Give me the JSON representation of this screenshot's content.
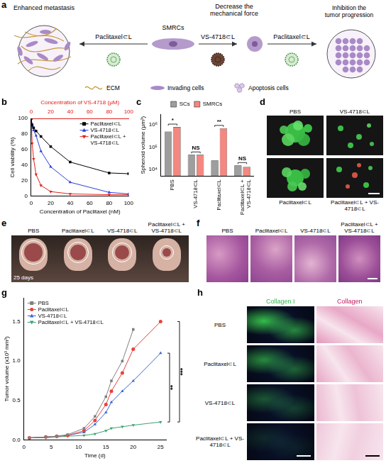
{
  "panels": {
    "a": {
      "letter": "a",
      "labels": {
        "left": "Enhanced metastasis",
        "center": "SMRCs",
        "middle": "Decrease the mechanical force",
        "right": "Inhibition the tumor progression"
      },
      "arrows": [
        "Paclitaxel⊂L",
        "VS-4718⊂L",
        "Paclitaxel⊂L"
      ],
      "key": [
        "ECM",
        "Invading cells",
        "Apoptosis cells"
      ]
    },
    "d": {
      "letter": "d",
      "images": [
        "PBS",
        "VS-4718⊂L",
        "Paclitaxel⊂L",
        "Paclitaxel⊂L + VS-4718⊂L"
      ]
    },
    "e": {
      "letter": "e",
      "images": [
        "PBS",
        "Paclitaxel⊂L",
        "VS-4718⊂L",
        "Paclitaxel⊂L + VS-4718⊂L"
      ],
      "caption": "25 days"
    },
    "f": {
      "letter": "f",
      "images": [
        "PBS",
        "Paclitaxel⊂L",
        "VS-4718⊂L",
        "Paclitaxel⊂L + VS-4718⊂L"
      ]
    },
    "h": {
      "letter": "h",
      "columns": [
        "Collagen I",
        "Collagen"
      ],
      "rows": [
        "PBS",
        "Paclitaxel⊂L",
        "VS-4718⊂L",
        "Paclitaxel⊂L + VS-4718⊂L"
      ]
    }
  },
  "chart_data": [
    {
      "panel": "b",
      "type": "line",
      "x_label": "Concentration of Paclitaxel (nM)",
      "x2_label": "Concentration of VS-4718 (μM)",
      "y_label": "Cell viability (%)",
      "xlim": [
        0,
        100
      ],
      "xticks": [
        0,
        20,
        40,
        60,
        80,
        100
      ],
      "x2lim": [
        0,
        100
      ],
      "x2ticks": [
        0,
        20,
        40,
        60,
        80,
        100
      ],
      "ylim": [
        0,
        100
      ],
      "yticks": [
        0,
        20,
        40,
        60,
        80,
        100
      ],
      "grid": false,
      "legend": "top-right",
      "series": [
        {
          "name": "Paclitaxel⊂L",
          "color": "#000000",
          "marker": "square",
          "x": [
            0,
            1,
            2.5,
            5,
            10,
            20,
            40,
            80,
            100
          ],
          "values": [
            100,
            92,
            88,
            84,
            77,
            64,
            44,
            30,
            29
          ]
        },
        {
          "name": "VS-4718⊂L",
          "color": "#2b3fd6",
          "marker": "triangle",
          "axis": "x2",
          "x": [
            0,
            1,
            2.5,
            5,
            10,
            20,
            40,
            80,
            100
          ],
          "values": [
            100,
            90,
            85,
            78,
            58,
            38,
            18,
            5,
            3
          ]
        },
        {
          "name": "Paclitaxel⊂L + VS-4718⊂L",
          "color": "#e0201b",
          "marker": "triangle-down",
          "x": [
            0,
            1,
            2.5,
            5,
            10,
            20,
            40,
            80,
            100
          ],
          "values": [
            100,
            68,
            48,
            28,
            14,
            6,
            3,
            2,
            2
          ]
        }
      ]
    },
    {
      "panel": "c",
      "type": "bar",
      "log": "y",
      "y_label": "Spheroid volume (μm³)",
      "categories": [
        "PBS",
        "VS-4718⊂L",
        "Paclitaxel⊂L",
        "Paclitaxel⊂L + VS-4718⊂L"
      ],
      "ylim": [
        5000,
        3000000
      ],
      "yticks": [
        {
          "value": 10000,
          "label": "10⁴"
        },
        {
          "value": 100000,
          "label": "10⁵"
        },
        {
          "value": 1000000,
          "label": "10⁶"
        }
      ],
      "grid": false,
      "legend": "top",
      "series": [
        {
          "name": "SCs",
          "color": "#9e9e9e",
          "values": [
            500000,
            45000,
            25000,
            15000
          ]
        },
        {
          "name": "SMRCs",
          "color": "#f4877f",
          "values": [
            800000,
            45000,
            700000,
            13000
          ]
        }
      ],
      "annotations": [
        "*",
        "NS",
        "**",
        "NS"
      ]
    },
    {
      "panel": "g",
      "type": "line",
      "x_label": "Time (d)",
      "y_label": "Tumor volume (x10³ mm³)",
      "xlim": [
        0,
        26
      ],
      "xticks": [
        0,
        5,
        10,
        15,
        20,
        25
      ],
      "ylim": [
        0,
        1.8
      ],
      "yticks": [
        {
          "value": 0,
          "label": "0.0"
        },
        {
          "value": 0.5,
          "label": "0.5"
        },
        {
          "value": 1,
          "label": "1.0"
        },
        {
          "value": 1.5,
          "label": "1.5"
        }
      ],
      "grid": false,
      "legend": "top-left",
      "x": [
        1,
        4,
        6,
        8,
        11,
        13,
        15,
        16,
        18,
        20,
        25
      ],
      "series": [
        {
          "name": "PBS",
          "color": "#7f7f7f",
          "marker": "square",
          "values": [
            0.03,
            0.04,
            0.05,
            0.07,
            0.15,
            0.3,
            0.55,
            0.75,
            1.0,
            1.4,
            null
          ]
        },
        {
          "name": "Paclitaxel⊂L",
          "color": "#e8413c",
          "marker": "circle",
          "values": [
            0.03,
            0.04,
            0.05,
            0.06,
            0.12,
            0.25,
            0.45,
            0.62,
            0.85,
            1.15,
            1.5
          ]
        },
        {
          "name": "VS-4718⊂L",
          "color": "#3a66d6",
          "marker": "triangle",
          "values": [
            0.03,
            0.04,
            0.05,
            0.06,
            0.1,
            0.2,
            0.35,
            0.48,
            0.62,
            0.75,
            1.1
          ]
        },
        {
          "name": "Paclitaxel⊂L + VS-4718⊂L",
          "color": "#3aa372",
          "marker": "triangle-down",
          "values": [
            0.03,
            0.03,
            0.04,
            0.05,
            0.06,
            0.08,
            0.12,
            0.15,
            0.17,
            0.19,
            0.23
          ]
        }
      ],
      "annotations": [
        {
          "from": "Paclitaxel⊂L + VS-4718⊂L",
          "to": "VS-4718⊂L",
          "label": "**"
        },
        {
          "from": "Paclitaxel⊂L + VS-4718⊂L",
          "to": "Paclitaxel⊂L",
          "label": "***"
        }
      ]
    }
  ]
}
